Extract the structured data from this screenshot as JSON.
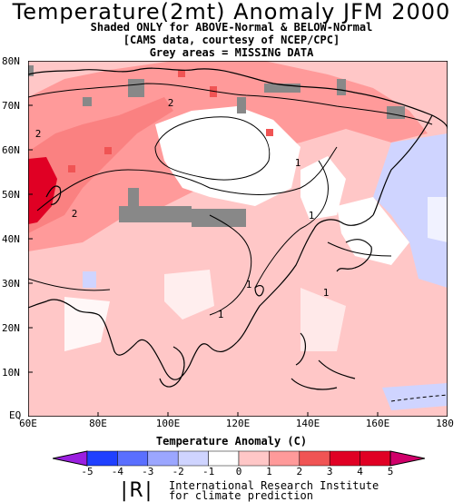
{
  "title": "Temperature(2mt) Anomaly JFM 2000",
  "subtitle_lines": [
    "Shaded ONLY for ABOVE-Normal & BELOW-Normal",
    "[CAMS data, courtesy of NCEP/CPC]",
    "Grey areas = MISSING DATA"
  ],
  "lat_labels": [
    "80N",
    "70N",
    "60N",
    "50N",
    "40N",
    "30N",
    "20N",
    "10N",
    "EQ"
  ],
  "lon_labels": [
    "60E",
    "80E",
    "100E",
    "120E",
    "140E",
    "160E",
    "180"
  ],
  "contour_labels": [
    "2",
    "2",
    "2",
    "1",
    "1",
    "1",
    "1",
    "1"
  ],
  "colorbar": {
    "label": "Temperature  Anomaly (C)",
    "ticks": [
      "-5",
      "-4",
      "-3",
      "-2",
      "-1",
      "0",
      "1",
      "2",
      "3",
      "4",
      "5"
    ],
    "colors": [
      "#9b1fe0",
      "#2040ff",
      "#5a6fff",
      "#9ba6ff",
      "#cfd4ff",
      "#ffffff",
      "#ffc7c7",
      "#ff9a9a",
      "#f05454",
      "#e00024",
      "#d0006a"
    ]
  },
  "logo": "|R|",
  "institute_lines": [
    "International Research Institute",
    "for climate prediction"
  ]
}
